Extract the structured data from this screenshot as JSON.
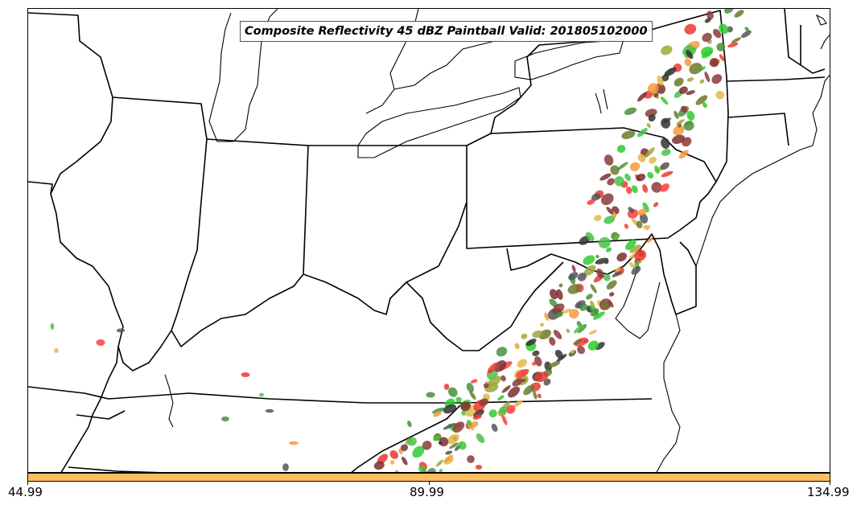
{
  "title": "Composite Reflectivity 45 dBZ Paintball Valid: 201805102000",
  "colorbar": {
    "color": "#fdbf5f",
    "ticks": [
      "44.99",
      "89.99",
      "134.99"
    ]
  },
  "paintball_colors": [
    "#ff3b3b",
    "#e8392f",
    "#f59a3c",
    "#e3b84a",
    "#9ea838",
    "#6b7a2a",
    "#2ecc2e",
    "#46c246",
    "#4a8f3c",
    "#7a2f2f",
    "#8b3a3a",
    "#555555",
    "#333333"
  ],
  "map": {
    "region": "Eastern United States",
    "borders": "state boundaries and coastlines in black"
  }
}
